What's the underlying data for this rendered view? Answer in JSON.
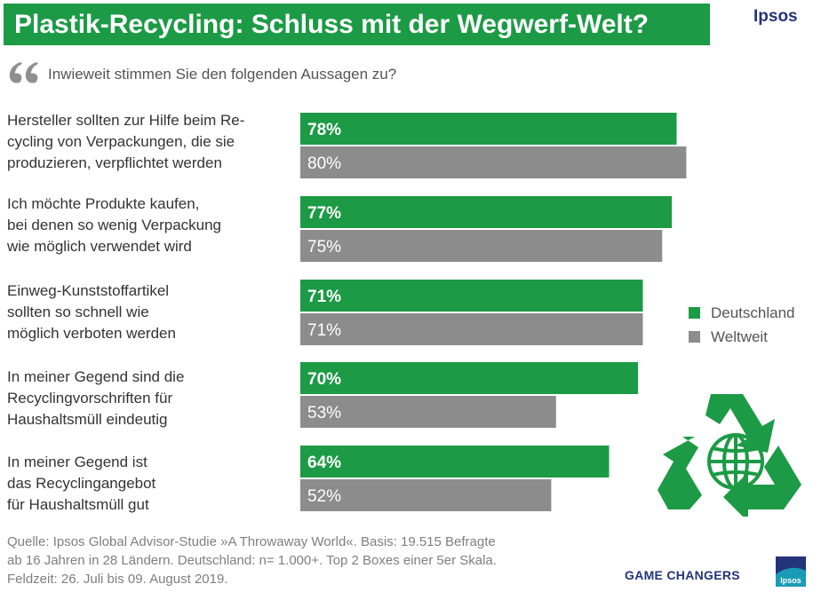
{
  "header": {
    "title": "Plastik-Recycling: Schluss mit der Wegwerf-Welt?",
    "brand": "Ipsos"
  },
  "question": "Inwieweit stimmen Sie den folgenden Aussagen zu?",
  "statements": [
    {
      "lines": [
        "Hersteller sollten zur Hilfe beim Re-",
        "cycling von Verpackungen, die sie",
        "produzieren, verpflichtet werden"
      ]
    },
    {
      "lines": [
        "Ich möchte Produkte kaufen,",
        "bei denen so wenig Verpackung",
        "wie möglich verwendet wird"
      ]
    },
    {
      "lines": [
        "Einweg-Kunststoffartikel",
        "sollten so schnell wie",
        "möglich verboten werden"
      ]
    },
    {
      "lines": [
        "In meiner Gegend sind die",
        "Recyclingvorschriften für",
        "Haushaltsmüll eindeutig"
      ]
    },
    {
      "lines": [
        "In meiner Gegend ist",
        "das Recyclingangebot",
        "für Haushaltsmüll gut"
      ]
    }
  ],
  "legend": {
    "deutschland": "Deutschland",
    "weltweit": "Weltweit"
  },
  "colors": {
    "deutschland": "#1c9a45",
    "weltweit": "#8c8c8c",
    "brand_blue": "#23347a"
  },
  "chart_data": {
    "type": "bar",
    "orientation": "horizontal",
    "categories": [
      "Hersteller sollten zur Hilfe beim Recycling von Verpackungen, die sie produzieren, verpflichtet werden",
      "Ich möchte Produkte kaufen, bei denen so wenig Verpackung wie möglich verwendet wird",
      "Einweg-Kunststoffartikel sollten so schnell wie möglich verboten werden",
      "In meiner Gegend sind die Recyclingvorschriften für Haushaltsmüll eindeutig",
      "In meiner Gegend ist das Recyclingangebot für Haushaltsmüll gut"
    ],
    "series": [
      {
        "name": "Deutschland",
        "values": [
          78,
          77,
          71,
          70,
          64
        ],
        "labels": [
          "78%",
          "77%",
          "71%",
          "70%",
          "64%"
        ]
      },
      {
        "name": "Weltweit",
        "values": [
          80,
          75,
          71,
          53,
          52
        ],
        "labels": [
          "80%",
          "75%",
          "71%",
          "53%",
          "52%"
        ]
      }
    ],
    "unit": "%",
    "xlim": [
      0,
      100
    ],
    "grid": false,
    "legend_position": "right"
  },
  "source": [
    "Quelle: Ipsos Global Advisor-Studie »A Throwaway World«. Basis: 19.515 Befragte",
    "ab 16 Jahren in 28 Ländern. Deutschland: n= 1.000+. Top 2 Boxes einer 5er Skala.",
    "Feldzeit: 26. Juli bis 09. August 2019."
  ],
  "footer": {
    "tagline": "GAME CHANGERS",
    "badge": "Ipsos"
  }
}
